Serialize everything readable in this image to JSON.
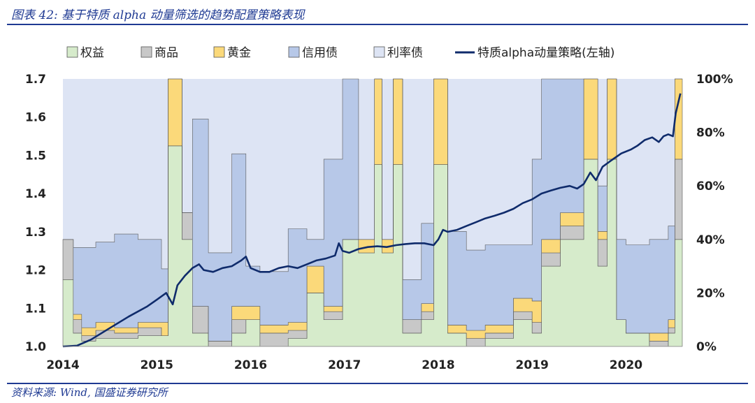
{
  "title": "图表 42: 基于特质 alpha 动量筛选的趋势配置策略表现",
  "source": "资料来源: Wind, 国盛证券研究所",
  "chart_data": {
    "type": "area",
    "x_ticks": [
      "2014",
      "2015",
      "2016",
      "2017",
      "2018",
      "2019",
      "2020"
    ],
    "y_left_ticks": [
      "1.0",
      "1.1",
      "1.2",
      "1.3",
      "1.4",
      "1.5",
      "1.6",
      "1.7"
    ],
    "y_right_ticks": [
      "0%",
      "20%",
      "40%",
      "60%",
      "80%",
      "100%"
    ],
    "ylim_left": [
      1.0,
      1.7
    ],
    "ylim_right": [
      0,
      1
    ],
    "xlim": [
      2014.0,
      2020.6
    ],
    "legend": [
      {
        "name": "权益",
        "kind": "area",
        "color": "#d6ebcb"
      },
      {
        "name": "商品",
        "kind": "area",
        "color": "#c8c8c8"
      },
      {
        "name": "黄金",
        "kind": "area",
        "color": "#fbd97a"
      },
      {
        "name": "信用债",
        "kind": "area",
        "color": "#b7c8e8"
      },
      {
        "name": "利率债",
        "kind": "area",
        "color": "#dde4f4"
      },
      {
        "name": "特质alpha动量策略(左轴)",
        "kind": "line",
        "color": "#0f2b6b"
      }
    ],
    "stack_series": [
      {
        "name": "权益",
        "points": [
          [
            2014.0,
            0.25
          ],
          [
            2014.11,
            0.05
          ],
          [
            2014.2,
            0.02
          ],
          [
            2014.35,
            0.03
          ],
          [
            2014.55,
            0.03
          ],
          [
            2014.8,
            0.04
          ],
          [
            2015.05,
            0.04
          ],
          [
            2015.12,
            0.75
          ],
          [
            2015.27,
            0.4
          ],
          [
            2015.38,
            0.05
          ],
          [
            2015.55,
            0.0
          ],
          [
            2015.8,
            0.05
          ],
          [
            2015.95,
            0.1
          ],
          [
            2016.1,
            0.0
          ],
          [
            2016.4,
            0.03
          ],
          [
            2016.6,
            0.2
          ],
          [
            2016.78,
            0.1
          ],
          [
            2016.98,
            0.4
          ],
          [
            2017.15,
            0.35
          ],
          [
            2017.32,
            0.68
          ],
          [
            2017.4,
            0.35
          ],
          [
            2017.52,
            0.68
          ],
          [
            2017.62,
            0.05
          ],
          [
            2017.82,
            0.1
          ],
          [
            2017.95,
            0.68
          ],
          [
            2018.1,
            0.05
          ],
          [
            2018.3,
            0.0
          ],
          [
            2018.5,
            0.03
          ],
          [
            2018.8,
            0.1
          ],
          [
            2019.0,
            0.05
          ],
          [
            2019.1,
            0.3
          ],
          [
            2019.3,
            0.4
          ],
          [
            2019.55,
            0.7
          ],
          [
            2019.7,
            0.3
          ],
          [
            2019.8,
            0.7
          ],
          [
            2019.9,
            0.1
          ],
          [
            2020.0,
            0.05
          ],
          [
            2020.25,
            0.0
          ],
          [
            2020.45,
            0.05
          ],
          [
            2020.52,
            0.4
          ],
          [
            2020.6,
            0.4
          ]
        ]
      },
      {
        "name": "商品",
        "points": [
          [
            2014.0,
            0.15
          ],
          [
            2014.11,
            0.05
          ],
          [
            2014.2,
            0.02
          ],
          [
            2014.35,
            0.03
          ],
          [
            2014.55,
            0.02
          ],
          [
            2014.8,
            0.03
          ],
          [
            2015.05,
            0.0
          ],
          [
            2015.12,
            0.0
          ],
          [
            2015.27,
            0.1
          ],
          [
            2015.38,
            0.1
          ],
          [
            2015.55,
            0.02
          ],
          [
            2015.8,
            0.05
          ],
          [
            2015.95,
            0.0
          ],
          [
            2016.1,
            0.05
          ],
          [
            2016.4,
            0.03
          ],
          [
            2016.6,
            0.0
          ],
          [
            2016.78,
            0.03
          ],
          [
            2016.98,
            0.0
          ],
          [
            2017.15,
            0.0
          ],
          [
            2017.32,
            0.0
          ],
          [
            2017.4,
            0.0
          ],
          [
            2017.52,
            0.0
          ],
          [
            2017.62,
            0.05
          ],
          [
            2017.82,
            0.03
          ],
          [
            2017.95,
            0.0
          ],
          [
            2018.1,
            0.0
          ],
          [
            2018.3,
            0.03
          ],
          [
            2018.5,
            0.02
          ],
          [
            2018.8,
            0.03
          ],
          [
            2019.0,
            0.04
          ],
          [
            2019.1,
            0.05
          ],
          [
            2019.3,
            0.05
          ],
          [
            2019.55,
            0.0
          ],
          [
            2019.7,
            0.1
          ],
          [
            2019.8,
            0.0
          ],
          [
            2019.9,
            0.0
          ],
          [
            2020.0,
            0.0
          ],
          [
            2020.25,
            0.02
          ],
          [
            2020.45,
            0.02
          ],
          [
            2020.52,
            0.3
          ],
          [
            2020.6,
            0.3
          ]
        ]
      },
      {
        "name": "黄金",
        "points": [
          [
            2014.0,
            0.0
          ],
          [
            2014.11,
            0.02
          ],
          [
            2014.2,
            0.03
          ],
          [
            2014.35,
            0.03
          ],
          [
            2014.55,
            0.02
          ],
          [
            2014.8,
            0.02
          ],
          [
            2015.05,
            0.05
          ],
          [
            2015.12,
            0.25
          ],
          [
            2015.27,
            0.0
          ],
          [
            2015.38,
            0.0
          ],
          [
            2015.55,
            0.0
          ],
          [
            2015.8,
            0.05
          ],
          [
            2015.95,
            0.05
          ],
          [
            2016.1,
            0.03
          ],
          [
            2016.4,
            0.03
          ],
          [
            2016.6,
            0.1
          ],
          [
            2016.78,
            0.02
          ],
          [
            2016.98,
            0.0
          ],
          [
            2017.15,
            0.05
          ],
          [
            2017.32,
            0.32
          ],
          [
            2017.4,
            0.05
          ],
          [
            2017.52,
            0.32
          ],
          [
            2017.62,
            0.0
          ],
          [
            2017.82,
            0.03
          ],
          [
            2017.95,
            0.32
          ],
          [
            2018.1,
            0.03
          ],
          [
            2018.3,
            0.03
          ],
          [
            2018.5,
            0.03
          ],
          [
            2018.8,
            0.05
          ],
          [
            2019.0,
            0.08
          ],
          [
            2019.1,
            0.05
          ],
          [
            2019.3,
            0.05
          ],
          [
            2019.55,
            0.3
          ],
          [
            2019.7,
            0.03
          ],
          [
            2019.8,
            0.3
          ],
          [
            2019.9,
            0.0
          ],
          [
            2020.0,
            0.0
          ],
          [
            2020.25,
            0.03
          ],
          [
            2020.45,
            0.03
          ],
          [
            2020.52,
            0.3
          ],
          [
            2020.6,
            0.3
          ]
        ]
      },
      {
        "name": "信用债",
        "points": [
          [
            2014.0,
            0.0
          ],
          [
            2014.11,
            0.25
          ],
          [
            2014.2,
            0.3
          ],
          [
            2014.35,
            0.3
          ],
          [
            2014.55,
            0.35
          ],
          [
            2014.8,
            0.31
          ],
          [
            2015.05,
            0.2
          ],
          [
            2015.12,
            0.0
          ],
          [
            2015.27,
            0.0
          ],
          [
            2015.38,
            0.7
          ],
          [
            2015.55,
            0.33
          ],
          [
            2015.8,
            0.57
          ],
          [
            2015.95,
            0.15
          ],
          [
            2016.1,
            0.2
          ],
          [
            2016.4,
            0.35
          ],
          [
            2016.6,
            0.1
          ],
          [
            2016.78,
            0.55
          ],
          [
            2016.98,
            0.6
          ],
          [
            2017.15,
            0.0
          ],
          [
            2017.32,
            0.0
          ],
          [
            2017.4,
            0.0
          ],
          [
            2017.52,
            0.0
          ],
          [
            2017.62,
            0.15
          ],
          [
            2017.82,
            0.3
          ],
          [
            2017.95,
            0.0
          ],
          [
            2018.1,
            0.35
          ],
          [
            2018.3,
            0.3
          ],
          [
            2018.5,
            0.3
          ],
          [
            2018.8,
            0.2
          ],
          [
            2019.0,
            0.53
          ],
          [
            2019.1,
            0.6
          ],
          [
            2019.3,
            0.5
          ],
          [
            2019.55,
            0.0
          ],
          [
            2019.7,
            0.17
          ],
          [
            2019.8,
            0.0
          ],
          [
            2019.9,
            0.3
          ],
          [
            2020.0,
            0.33
          ],
          [
            2020.25,
            0.35
          ],
          [
            2020.45,
            0.35
          ],
          [
            2020.52,
            0.0
          ],
          [
            2020.6,
            0.0
          ]
        ]
      }
    ],
    "line_series": {
      "name": "特质alpha动量策略(左轴)",
      "points": [
        [
          2014.0,
          1.0
        ],
        [
          2014.15,
          1.002
        ],
        [
          2014.3,
          1.018
        ],
        [
          2014.5,
          1.048
        ],
        [
          2014.7,
          1.078
        ],
        [
          2014.9,
          1.105
        ],
        [
          2015.0,
          1.122
        ],
        [
          2015.1,
          1.14
        ],
        [
          2015.17,
          1.11
        ],
        [
          2015.22,
          1.16
        ],
        [
          2015.3,
          1.185
        ],
        [
          2015.38,
          1.205
        ],
        [
          2015.45,
          1.215
        ],
        [
          2015.5,
          1.2
        ],
        [
          2015.6,
          1.195
        ],
        [
          2015.7,
          1.205
        ],
        [
          2015.8,
          1.21
        ],
        [
          2015.9,
          1.225
        ],
        [
          2015.95,
          1.235
        ],
        [
          2016.0,
          1.205
        ],
        [
          2016.1,
          1.195
        ],
        [
          2016.2,
          1.195
        ],
        [
          2016.3,
          1.205
        ],
        [
          2016.4,
          1.21
        ],
        [
          2016.5,
          1.205
        ],
        [
          2016.6,
          1.215
        ],
        [
          2016.7,
          1.225
        ],
        [
          2016.8,
          1.23
        ],
        [
          2016.9,
          1.238
        ],
        [
          2016.94,
          1.27
        ],
        [
          2016.98,
          1.25
        ],
        [
          2017.05,
          1.245
        ],
        [
          2017.15,
          1.255
        ],
        [
          2017.25,
          1.26
        ],
        [
          2017.35,
          1.262
        ],
        [
          2017.45,
          1.26
        ],
        [
          2017.55,
          1.265
        ],
        [
          2017.65,
          1.268
        ],
        [
          2017.75,
          1.27
        ],
        [
          2017.85,
          1.27
        ],
        [
          2017.95,
          1.265
        ],
        [
          2018.0,
          1.28
        ],
        [
          2018.05,
          1.305
        ],
        [
          2018.1,
          1.3
        ],
        [
          2018.2,
          1.305
        ],
        [
          2018.3,
          1.315
        ],
        [
          2018.4,
          1.325
        ],
        [
          2018.5,
          1.335
        ],
        [
          2018.6,
          1.342
        ],
        [
          2018.7,
          1.35
        ],
        [
          2018.8,
          1.36
        ],
        [
          2018.9,
          1.375
        ],
        [
          2019.0,
          1.385
        ],
        [
          2019.1,
          1.4
        ],
        [
          2019.2,
          1.408
        ],
        [
          2019.3,
          1.415
        ],
        [
          2019.4,
          1.42
        ],
        [
          2019.48,
          1.413
        ],
        [
          2019.55,
          1.425
        ],
        [
          2019.62,
          1.455
        ],
        [
          2019.68,
          1.435
        ],
        [
          2019.75,
          1.47
        ],
        [
          2019.85,
          1.488
        ],
        [
          2019.95,
          1.505
        ],
        [
          2020.05,
          1.515
        ],
        [
          2020.12,
          1.525
        ],
        [
          2020.2,
          1.54
        ],
        [
          2020.28,
          1.547
        ],
        [
          2020.35,
          1.535
        ],
        [
          2020.4,
          1.55
        ],
        [
          2020.45,
          1.555
        ],
        [
          2020.5,
          1.55
        ],
        [
          2020.53,
          1.61
        ],
        [
          2020.58,
          1.662
        ]
      ]
    }
  }
}
